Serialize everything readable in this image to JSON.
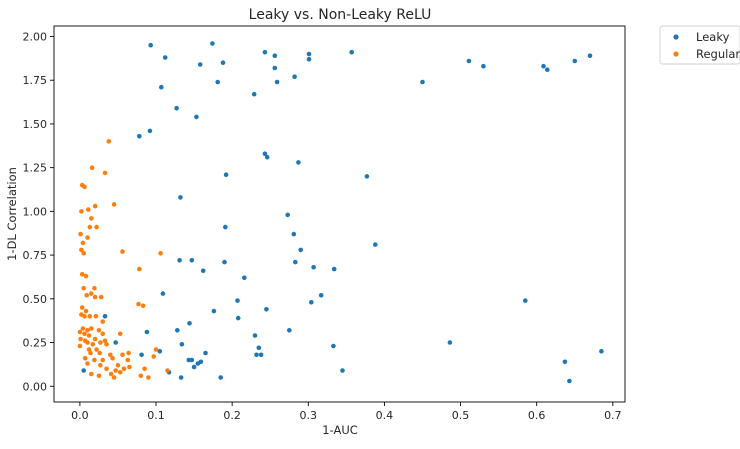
{
  "chart_data": {
    "type": "scatter",
    "title": "Leaky vs. Non-Leaky ReLU",
    "xlabel": "1-AUC",
    "ylabel": "1-DL Correlation",
    "xlim": [
      -0.034,
      0.716
    ],
    "ylim": [
      -0.09,
      2.06
    ],
    "xticks": [
      0.0,
      0.1,
      0.2,
      0.3,
      0.4,
      0.5,
      0.6,
      0.7
    ],
    "xtick_labels": [
      "0.0",
      "0.1",
      "0.2",
      "0.3",
      "0.4",
      "0.5",
      "0.6",
      "0.7"
    ],
    "yticks": [
      0.0,
      0.25,
      0.5,
      0.75,
      1.0,
      1.25,
      1.5,
      1.75,
      2.0
    ],
    "ytick_labels": [
      "0.00",
      "0.25",
      "0.50",
      "0.75",
      "1.00",
      "1.25",
      "1.50",
      "1.75",
      "2.00"
    ],
    "grid": false,
    "legend_position": "outside-top-right",
    "series": [
      {
        "name": "Leaky",
        "color": "#1f77b4",
        "points": [
          [
            0.093,
            1.95
          ],
          [
            0.112,
            1.88
          ],
          [
            0.174,
            1.96
          ],
          [
            0.243,
            1.91
          ],
          [
            0.256,
            1.89
          ],
          [
            0.301,
            1.9
          ],
          [
            0.357,
            1.91
          ],
          [
            0.158,
            1.84
          ],
          [
            0.188,
            1.85
          ],
          [
            0.256,
            1.82
          ],
          [
            0.301,
            1.87
          ],
          [
            0.511,
            1.86
          ],
          [
            0.53,
            1.83
          ],
          [
            0.609,
            1.83
          ],
          [
            0.65,
            1.86
          ],
          [
            0.67,
            1.89
          ],
          [
            0.181,
            1.74
          ],
          [
            0.259,
            1.74
          ],
          [
            0.282,
            1.77
          ],
          [
            0.45,
            1.74
          ],
          [
            0.614,
            1.81
          ],
          [
            0.107,
            1.71
          ],
          [
            0.229,
            1.67
          ],
          [
            0.127,
            1.59
          ],
          [
            0.153,
            1.54
          ],
          [
            0.092,
            1.46
          ],
          [
            0.078,
            1.43
          ],
          [
            0.243,
            1.33
          ],
          [
            0.246,
            1.31
          ],
          [
            0.287,
            1.28
          ],
          [
            0.192,
            1.21
          ],
          [
            0.377,
            1.2
          ],
          [
            0.132,
            1.08
          ],
          [
            0.273,
            0.98
          ],
          [
            0.191,
            0.91
          ],
          [
            0.281,
            0.87
          ],
          [
            0.388,
            0.81
          ],
          [
            0.29,
            0.78
          ],
          [
            0.131,
            0.72
          ],
          [
            0.147,
            0.72
          ],
          [
            0.19,
            0.71
          ],
          [
            0.283,
            0.71
          ],
          [
            0.307,
            0.68
          ],
          [
            0.334,
            0.67
          ],
          [
            0.162,
            0.66
          ],
          [
            0.216,
            0.62
          ],
          [
            0.109,
            0.53
          ],
          [
            0.317,
            0.52
          ],
          [
            0.207,
            0.49
          ],
          [
            0.304,
            0.48
          ],
          [
            0.585,
            0.49
          ],
          [
            0.245,
            0.44
          ],
          [
            0.176,
            0.43
          ],
          [
            0.208,
            0.39
          ],
          [
            0.033,
            0.4
          ],
          [
            0.144,
            0.36
          ],
          [
            0.088,
            0.31
          ],
          [
            0.128,
            0.32
          ],
          [
            0.275,
            0.32
          ],
          [
            0.23,
            0.29
          ],
          [
            0.486,
            0.25
          ],
          [
            0.333,
            0.23
          ],
          [
            0.134,
            0.24
          ],
          [
            0.235,
            0.22
          ],
          [
            0.105,
            0.2
          ],
          [
            0.685,
            0.2
          ],
          [
            0.081,
            0.18
          ],
          [
            0.165,
            0.19
          ],
          [
            0.232,
            0.18
          ],
          [
            0.238,
            0.18
          ],
          [
            0.143,
            0.15
          ],
          [
            0.147,
            0.15
          ],
          [
            0.159,
            0.14
          ],
          [
            0.637,
            0.14
          ],
          [
            0.155,
            0.13
          ],
          [
            0.15,
            0.11
          ],
          [
            0.047,
            0.25
          ],
          [
            0.005,
            0.09
          ],
          [
            0.117,
            0.08
          ],
          [
            0.345,
            0.09
          ],
          [
            0.133,
            0.05
          ],
          [
            0.185,
            0.05
          ],
          [
            0.643,
            0.03
          ]
        ]
      },
      {
        "name": "Regular",
        "color": "#ff7f0e",
        "points": [
          [
            0.038,
            1.4
          ],
          [
            0.016,
            1.25
          ],
          [
            0.033,
            1.22
          ],
          [
            0.003,
            1.15
          ],
          [
            0.006,
            1.14
          ],
          [
            0.045,
            1.04
          ],
          [
            0.02,
            1.03
          ],
          [
            0.011,
            1.01
          ],
          [
            0.002,
            1.0
          ],
          [
            0.015,
            0.96
          ],
          [
            0.013,
            0.91
          ],
          [
            0.022,
            0.91
          ],
          [
            0.001,
            0.87
          ],
          [
            0.01,
            0.85
          ],
          [
            0.004,
            0.82
          ],
          [
            0.002,
            0.78
          ],
          [
            0.005,
            0.76
          ],
          [
            0.056,
            0.77
          ],
          [
            0.106,
            0.76
          ],
          [
            0.078,
            0.67
          ],
          [
            0.003,
            0.64
          ],
          [
            0.008,
            0.63
          ],
          [
            0.005,
            0.56
          ],
          [
            0.019,
            0.56
          ],
          [
            0.015,
            0.53
          ],
          [
            0.009,
            0.52
          ],
          [
            0.02,
            0.51
          ],
          [
            0.028,
            0.51
          ],
          [
            0.077,
            0.47
          ],
          [
            0.083,
            0.46
          ],
          [
            0.003,
            0.45
          ],
          [
            0.008,
            0.43
          ],
          [
            0.002,
            0.41
          ],
          [
            0.006,
            0.4
          ],
          [
            0.013,
            0.4
          ],
          [
            0.021,
            0.4
          ],
          [
            0.03,
            0.37
          ],
          [
            0.004,
            0.33
          ],
          [
            0.01,
            0.32
          ],
          [
            0.015,
            0.33
          ],
          [
            0.025,
            0.32
          ],
          [
            0.0,
            0.31
          ],
          [
            0.006,
            0.3
          ],
          [
            0.012,
            0.29
          ],
          [
            0.03,
            0.3
          ],
          [
            0.053,
            0.3
          ],
          [
            0.001,
            0.27
          ],
          [
            0.007,
            0.26
          ],
          [
            0.02,
            0.27
          ],
          [
            0.033,
            0.26
          ],
          [
            0.01,
            0.25
          ],
          [
            0.017,
            0.24
          ],
          [
            0.027,
            0.25
          ],
          [
            0.035,
            0.24
          ],
          [
            0.0,
            0.23
          ],
          [
            0.012,
            0.21
          ],
          [
            0.022,
            0.21
          ],
          [
            0.1,
            0.21
          ],
          [
            0.014,
            0.19
          ],
          [
            0.026,
            0.19
          ],
          [
            0.04,
            0.18
          ],
          [
            0.064,
            0.19
          ],
          [
            0.056,
            0.18
          ],
          [
            0.097,
            0.17
          ],
          [
            0.007,
            0.16
          ],
          [
            0.019,
            0.15
          ],
          [
            0.03,
            0.15
          ],
          [
            0.043,
            0.16
          ],
          [
            0.063,
            0.15
          ],
          [
            0.01,
            0.13
          ],
          [
            0.027,
            0.12
          ],
          [
            0.05,
            0.12
          ],
          [
            0.065,
            0.11
          ],
          [
            0.035,
            0.1
          ],
          [
            0.047,
            0.09
          ],
          [
            0.058,
            0.1
          ],
          [
            0.085,
            0.1
          ],
          [
            0.115,
            0.09
          ],
          [
            0.015,
            0.07
          ],
          [
            0.025,
            0.06
          ],
          [
            0.041,
            0.07
          ],
          [
            0.053,
            0.08
          ],
          [
            0.08,
            0.06
          ],
          [
            0.09,
            0.05
          ],
          [
            0.045,
            0.05
          ]
        ]
      }
    ]
  }
}
